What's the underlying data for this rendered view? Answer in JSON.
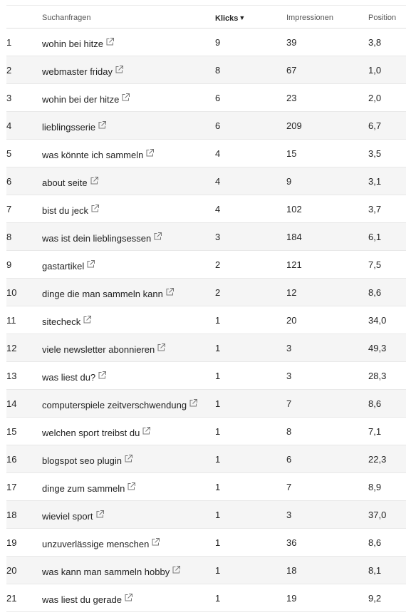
{
  "table": {
    "headers": {
      "query": "Suchanfragen",
      "klicks": "Klicks",
      "sort_indicator": "▼",
      "impressions": "Impressionen",
      "position": "Position"
    },
    "rows": [
      {
        "num": "1",
        "query": "wohin bei hitze",
        "klicks": "9",
        "impressions": "39",
        "position": "3,8"
      },
      {
        "num": "2",
        "query": "webmaster friday",
        "klicks": "8",
        "impressions": "67",
        "position": "1,0"
      },
      {
        "num": "3",
        "query": "wohin bei der hitze",
        "klicks": "6",
        "impressions": "23",
        "position": "2,0"
      },
      {
        "num": "4",
        "query": "lieblingsserie",
        "klicks": "6",
        "impressions": "209",
        "position": "6,7"
      },
      {
        "num": "5",
        "query": "was könnte ich sammeln",
        "klicks": "4",
        "impressions": "15",
        "position": "3,5"
      },
      {
        "num": "6",
        "query": "about seite",
        "klicks": "4",
        "impressions": "9",
        "position": "3,1"
      },
      {
        "num": "7",
        "query": "bist du jeck",
        "klicks": "4",
        "impressions": "102",
        "position": "3,7"
      },
      {
        "num": "8",
        "query": "was ist dein lieblingsessen",
        "klicks": "3",
        "impressions": "184",
        "position": "6,1"
      },
      {
        "num": "9",
        "query": "gastartikel",
        "klicks": "2",
        "impressions": "121",
        "position": "7,5"
      },
      {
        "num": "10",
        "query": "dinge die man sammeln kann",
        "klicks": "2",
        "impressions": "12",
        "position": "8,6"
      },
      {
        "num": "11",
        "query": "sitecheck",
        "klicks": "1",
        "impressions": "20",
        "position": "34,0"
      },
      {
        "num": "12",
        "query": "viele newsletter abonnieren",
        "klicks": "1",
        "impressions": "3",
        "position": "49,3"
      },
      {
        "num": "13",
        "query": "was liest du?",
        "klicks": "1",
        "impressions": "3",
        "position": "28,3"
      },
      {
        "num": "14",
        "query": "computerspiele zeitverschwendung",
        "klicks": "1",
        "impressions": "7",
        "position": "8,6"
      },
      {
        "num": "15",
        "query": "welchen sport treibst du",
        "klicks": "1",
        "impressions": "8",
        "position": "7,1"
      },
      {
        "num": "16",
        "query": "blogspot seo plugin",
        "klicks": "1",
        "impressions": "6",
        "position": "22,3"
      },
      {
        "num": "17",
        "query": "dinge zum sammeln",
        "klicks": "1",
        "impressions": "7",
        "position": "8,9"
      },
      {
        "num": "18",
        "query": "wieviel sport",
        "klicks": "1",
        "impressions": "3",
        "position": "37,0"
      },
      {
        "num": "19",
        "query": "unzuverlässige menschen",
        "klicks": "1",
        "impressions": "36",
        "position": "8,6"
      },
      {
        "num": "20",
        "query": "was kann man sammeln hobby",
        "klicks": "1",
        "impressions": "18",
        "position": "8,1"
      },
      {
        "num": "21",
        "query": "was liest du gerade",
        "klicks": "1",
        "impressions": "19",
        "position": "9,2"
      }
    ]
  },
  "icons": {
    "external_link": "external-link-icon"
  },
  "colors": {
    "alt_row_background": "#f5f5f5",
    "row_border": "#e8e8e8",
    "text": "#222222",
    "icon": "#777777"
  }
}
